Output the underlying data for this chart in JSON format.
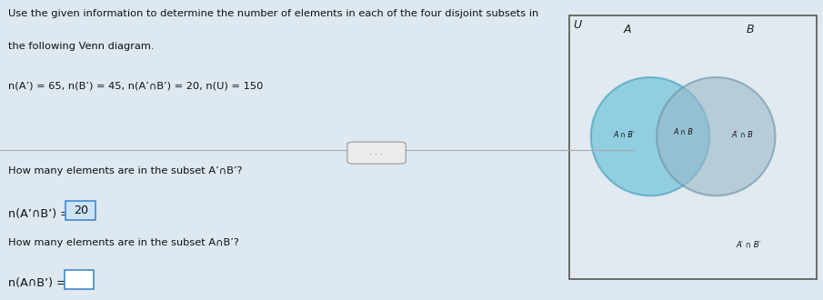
{
  "bg_color": "#d0dfe8",
  "panel_color": "#dde8f0",
  "text_color": "#111111",
  "title_line1": "Use the given information to determine the number of elements in each of the four disjoint subsets in",
  "title_line2": "the following Venn diagram.",
  "given_info": "n(A’) = 65, n(B’) = 45, n(A’∩B’) = 20, n(U) = 150",
  "q1_text": "How many elements are in the subset A’∩B’?",
  "q1_answer_prefix": "n(A’∩B’) = ",
  "q1_answer": "20",
  "q2_text": "How many elements are in the subset A∩B’?",
  "q2_answer_prefix": "n(A∩B’) =",
  "label_A": "A",
  "label_B": "B",
  "label_U": "U",
  "lbl_AnBp": "A ∩ B′",
  "lbl_AnB": "A ∩ B",
  "lbl_ApnB": "A′ ∩ B",
  "lbl_ApnBp": "A′ ∩ B′",
  "color_circle_a": "#5bbcd6",
  "color_circle_b": "#9ab8c8",
  "color_circle_a_edge": "#3a9ab8",
  "color_circle_b_edge": "#6a8fa0",
  "venn_bg": "#e0eaf0",
  "venn_rect_edge": "#555555"
}
